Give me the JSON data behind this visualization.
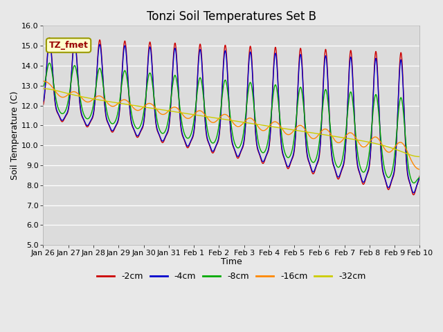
{
  "title": "Tonzi Soil Temperatures Set B",
  "xlabel": "Time",
  "ylabel": "Soil Temperature (C)",
  "ylim": [
    5.0,
    16.0
  ],
  "ytick_vals": [
    5.0,
    6.0,
    7.0,
    8.0,
    9.0,
    10.0,
    11.0,
    12.0,
    13.0,
    14.0,
    15.0,
    16.0
  ],
  "xtick_labels": [
    "Jan 26",
    "Jan 27",
    "Jan 28",
    "Jan 29",
    "Jan 30",
    "Jan 31",
    "Feb 1",
    "Feb 2",
    "Feb 3",
    "Feb 4",
    "Feb 5",
    "Feb 6",
    "Feb 7",
    "Feb 8",
    "Feb 9",
    "Feb 10"
  ],
  "legend_labels": [
    "-2cm",
    "-4cm",
    "-8cm",
    "-16cm",
    "-32cm"
  ],
  "line_colors": [
    "#cc0000",
    "#0000cc",
    "#00aa00",
    "#ff8800",
    "#cccc00"
  ],
  "annotation_text": "TZ_fmet",
  "annotation_fg": "#990000",
  "annotation_bg": "#ffffcc",
  "annotation_border": "#999900",
  "plot_bg": "#dcdcdc",
  "fig_bg": "#e8e8e8",
  "grid_color": "#ffffff",
  "title_fontsize": 12,
  "tick_fontsize": 8,
  "legend_fontsize": 9,
  "label_fontsize": 9
}
